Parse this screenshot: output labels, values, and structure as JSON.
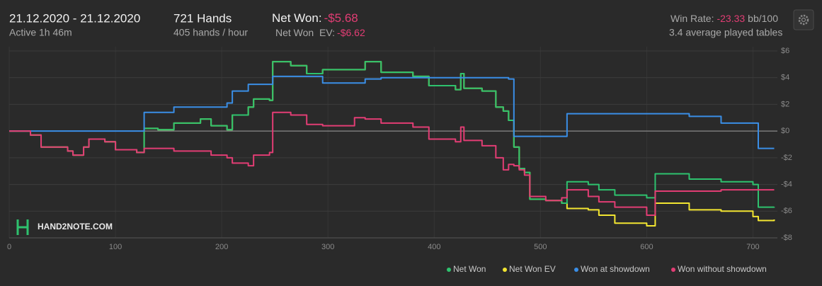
{
  "header": {
    "date_range": "21.12.2020 - 21.12.2020",
    "active": "Active 1h 46m",
    "hands": "721 Hands",
    "hands_per_hour": "405 hands / hour",
    "net_won_label": "Net Won:",
    "net_won_value": "-$5.68",
    "net_won_ev_label": "Net Won  EV:",
    "net_won_ev_value": "-$6.62",
    "win_rate_label": "Win Rate:",
    "win_rate_value": "-23.33",
    "win_rate_unit": "bb/100",
    "tables": "3.4 average played tables",
    "logo": "HAND2NOTE.COM"
  },
  "chart_data": {
    "type": "line",
    "step": true,
    "x": [
      0,
      20,
      30,
      55,
      60,
      70,
      75,
      90,
      100,
      120,
      127,
      140,
      155,
      180,
      190,
      205,
      210,
      225,
      230,
      245,
      248,
      265,
      280,
      295,
      325,
      335,
      350,
      380,
      395,
      420,
      425,
      428,
      445,
      458,
      465,
      470,
      475,
      480,
      485,
      490,
      505,
      520,
      525,
      545,
      555,
      570,
      600,
      608,
      640,
      670,
      700,
      705,
      720
    ],
    "series": [
      {
        "name": "Net Won  EV",
        "color": "#f2e531",
        "values": [
          0,
          -0.3,
          -1.2,
          -1.5,
          -1.8,
          -1.2,
          -0.6,
          -0.8,
          -1.4,
          -1.6,
          0.2,
          0.1,
          0.6,
          0.9,
          0.4,
          0.1,
          1.2,
          1.8,
          2.4,
          2.3,
          5.2,
          4.9,
          4.3,
          4.6,
          4.6,
          5.2,
          4.4,
          4.1,
          3.4,
          3.1,
          4.3,
          3.2,
          3.0,
          1.8,
          1.5,
          0.8,
          -1.2,
          -2.8,
          -3.1,
          -5.1,
          -5.2,
          -5.4,
          -5.8,
          -5.9,
          -6.3,
          -6.9,
          -7.1,
          -5.4,
          -5.9,
          -6.0,
          -6.4,
          -6.7,
          -6.62
        ]
      },
      {
        "name": "Net Won",
        "color": "#2ec26e",
        "values": [
          0,
          -0.3,
          -1.2,
          -1.5,
          -1.8,
          -1.2,
          -0.6,
          -0.8,
          -1.4,
          -1.6,
          0.2,
          0.1,
          0.6,
          0.9,
          0.4,
          0.1,
          1.2,
          1.8,
          2.4,
          2.3,
          5.2,
          4.9,
          4.3,
          4.6,
          4.6,
          5.2,
          4.4,
          4.1,
          3.4,
          3.1,
          4.3,
          3.2,
          3.0,
          1.8,
          1.5,
          0.8,
          -1.2,
          -2.8,
          -3.1,
          -5.1,
          -5.2,
          -5.4,
          -3.8,
          -4.0,
          -4.4,
          -4.8,
          -5.0,
          -3.2,
          -3.6,
          -3.8,
          -4.0,
          -5.7,
          -5.68
        ]
      },
      {
        "name": "Won at showdown",
        "color": "#3a8ee6",
        "values": [
          0,
          0,
          0,
          0,
          0,
          0,
          0,
          0,
          0,
          0,
          1.4,
          1.4,
          1.8,
          1.8,
          1.8,
          2.1,
          3.0,
          3.5,
          3.5,
          3.5,
          4.1,
          4.1,
          4.1,
          3.6,
          3.6,
          3.9,
          4.0,
          4.0,
          4.0,
          4.0,
          4.0,
          4.0,
          4.0,
          4.0,
          4.0,
          3.9,
          -0.4,
          -0.4,
          -0.4,
          -0.4,
          -0.4,
          -0.4,
          1.3,
          1.3,
          1.3,
          1.3,
          1.3,
          1.3,
          1.1,
          0.6,
          0.6,
          -1.3,
          -1.3
        ]
      },
      {
        "name": "Won without showdown",
        "color": "#e23d74",
        "values": [
          0,
          -0.3,
          -1.2,
          -1.5,
          -1.8,
          -1.2,
          -0.6,
          -0.8,
          -1.4,
          -1.6,
          -1.3,
          -1.3,
          -1.5,
          -1.5,
          -1.8,
          -2.0,
          -2.4,
          -2.6,
          -1.8,
          -1.6,
          1.4,
          1.2,
          0.5,
          0.4,
          1.0,
          0.9,
          0.6,
          0.3,
          -0.6,
          -0.8,
          0.3,
          -0.7,
          -1.1,
          -2.0,
          -2.9,
          -2.5,
          -2.6,
          -2.9,
          -3.3,
          -4.9,
          -5.2,
          -5.0,
          -4.4,
          -4.9,
          -5.3,
          -5.7,
          -6.3,
          -4.5,
          -4.5,
          -4.4,
          -4.4,
          -4.4,
          -4.4
        ]
      }
    ],
    "legend_order": [
      1,
      0,
      2,
      3
    ],
    "xlim": [
      0,
      723
    ],
    "xticks": [
      0,
      100,
      200,
      300,
      400,
      500,
      600,
      700
    ],
    "ylim": [
      -8,
      6
    ],
    "yticks": [
      {
        "value": -8,
        "label": "-$8"
      },
      {
        "value": -6,
        "label": "-$6"
      },
      {
        "value": -4,
        "label": "-$4"
      },
      {
        "value": -2,
        "label": "-$2"
      },
      {
        "value": 0,
        "label": "$0"
      },
      {
        "value": 2,
        "label": "$2"
      },
      {
        "value": 4,
        "label": "$4"
      },
      {
        "value": 6,
        "label": "$6"
      }
    ],
    "grid": true
  }
}
